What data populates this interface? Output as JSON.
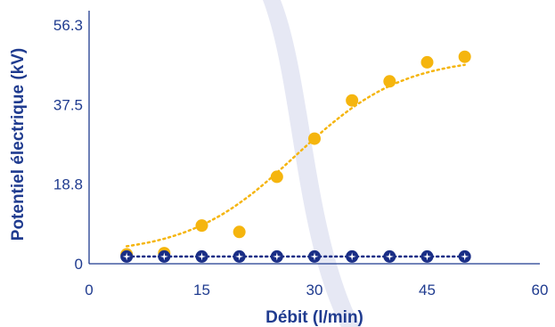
{
  "chart_data": {
    "type": "scatter",
    "xlabel": "Débit (l/min)",
    "ylabel": "Potentiel électrique (kV)",
    "xlim": [
      0,
      60
    ],
    "ylim": [
      0,
      56.3
    ],
    "xticks": [
      "0",
      "15",
      "30",
      "45",
      "60"
    ],
    "yticks": [
      "0",
      "18.8",
      "37.5",
      "56.3"
    ],
    "grid": false,
    "series": [
      {
        "color": "#f5b50e",
        "marker": "circle",
        "trend": "dotted-sigmoid",
        "x": [
          5,
          10,
          15,
          20,
          25,
          30,
          35,
          40,
          45,
          50
        ],
        "y": [
          2.2,
          2.5,
          9.0,
          7.5,
          20.5,
          29.5,
          38.5,
          43.0,
          47.5,
          48.8
        ]
      },
      {
        "color": "#1a2e86",
        "marker": "circle-star",
        "trend": "dotted-line",
        "x": [
          5,
          10,
          15,
          20,
          25,
          30,
          35,
          40,
          45,
          50
        ],
        "y": [
          1.7,
          1.7,
          1.7,
          1.7,
          1.7,
          1.7,
          1.7,
          1.7,
          1.7,
          1.7
        ]
      }
    ]
  },
  "colors": {
    "axis": "#1f3b8f",
    "text": "#1f3b8f",
    "watermark_arc": "#e6e8f4"
  }
}
